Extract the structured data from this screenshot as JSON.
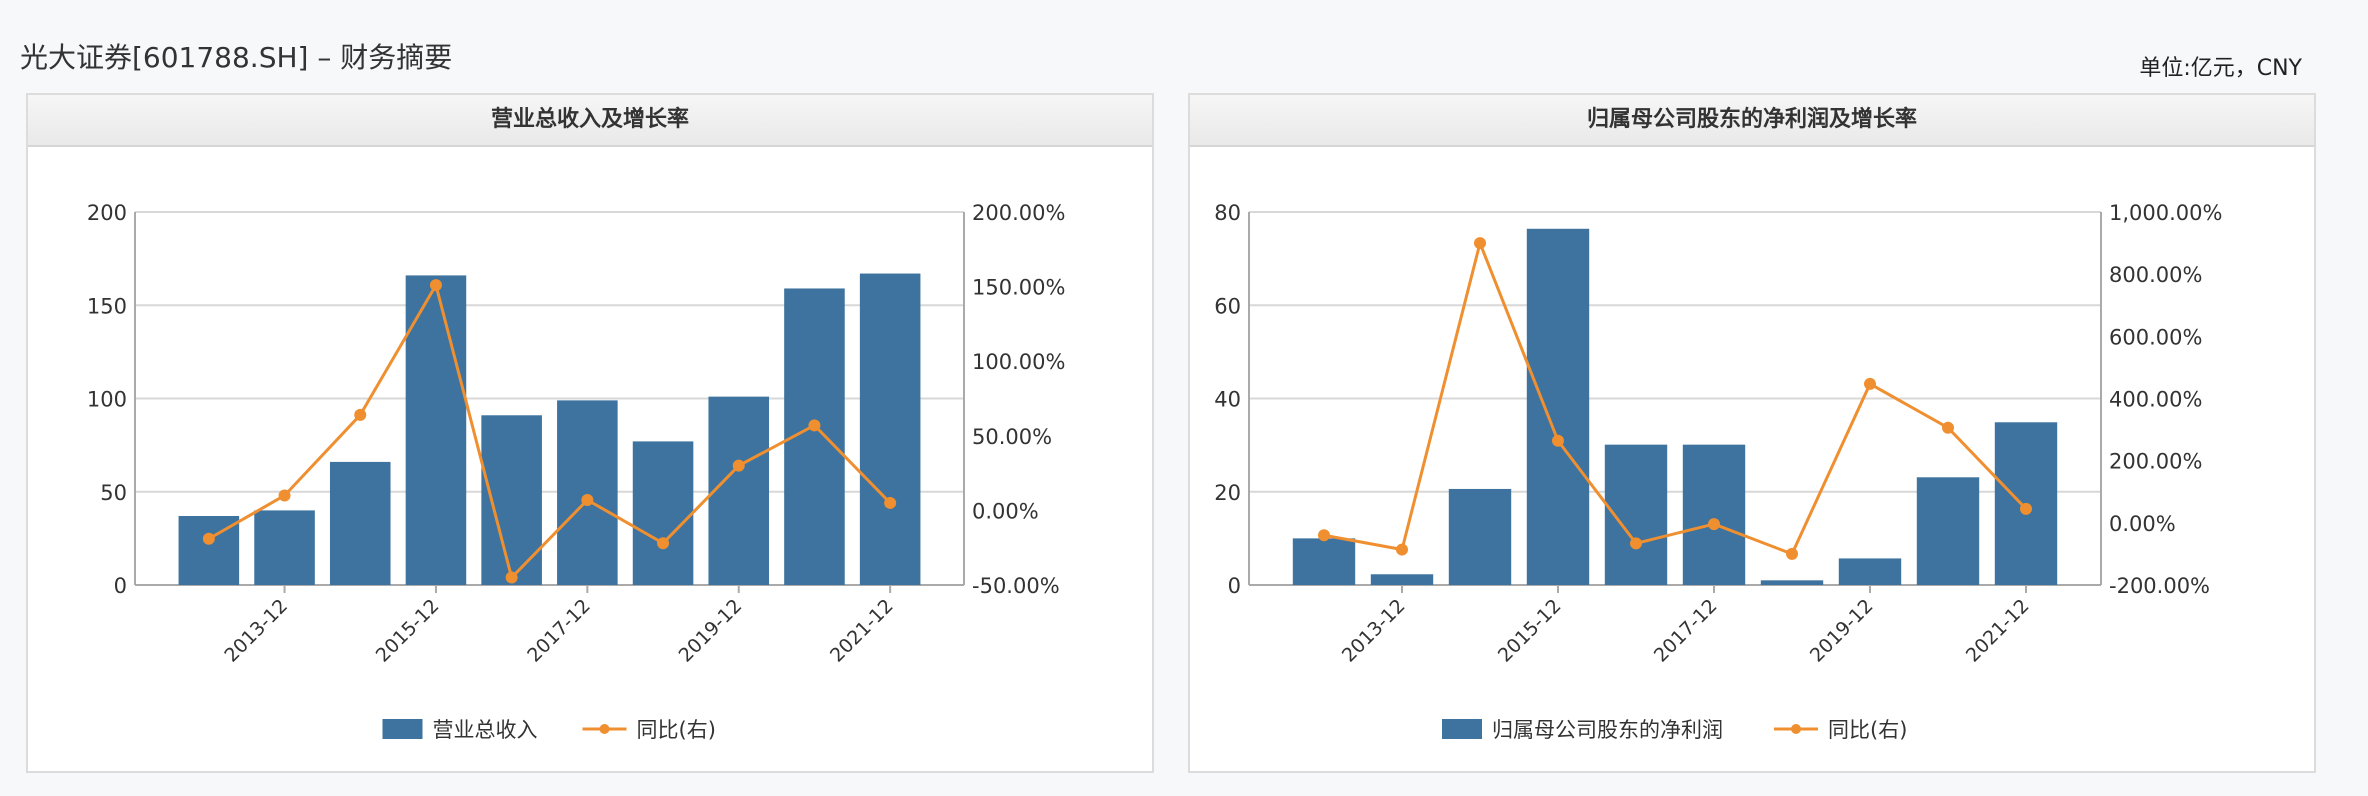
{
  "page": {
    "title": "光大证券[601788.SH] – 财务摘要",
    "unit": "单位:亿元，CNY"
  },
  "colors": {
    "bar": "#3d739e",
    "line": "#ef8f30",
    "grid": "#d8d8d8",
    "axis": "#aaaaaa"
  },
  "chart_data": [
    {
      "type": "bar",
      "title": "营业总收入及增长率",
      "categories": [
        "2012-12",
        "2013-12",
        "2014-12",
        "2015-12",
        "2016-12",
        "2017-12",
        "2018-12",
        "2019-12",
        "2020-12",
        "2021-12"
      ],
      "shown_x_labels": [
        "2013-12",
        "2015-12",
        "2017-12",
        "2019-12",
        "2021-12"
      ],
      "series": [
        {
          "name": "营业总收入",
          "type": "bar",
          "axis": "left",
          "values": [
            37,
            40,
            66,
            166,
            91,
            99,
            77,
            101,
            159,
            167
          ]
        },
        {
          "name": "同比(右)",
          "type": "line",
          "axis": "right",
          "values": [
            -19,
            10,
            64,
            151,
            -45,
            7,
            -22,
            30,
            57,
            5
          ]
        }
      ],
      "ylim_left": [
        0,
        200
      ],
      "yticks_left": [
        "0",
        "50",
        "100",
        "150",
        "200"
      ],
      "ylim_right": [
        -50,
        200
      ],
      "yticks_right": [
        "-50.00%",
        "0.00%",
        "50.00%",
        "100.00%",
        "150.00%",
        "200.00%"
      ],
      "legend": "bottom"
    },
    {
      "type": "bar",
      "title": "归属母公司股东的净利润及增长率",
      "categories": [
        "2012-12",
        "2013-12",
        "2014-12",
        "2015-12",
        "2016-12",
        "2017-12",
        "2018-12",
        "2019-12",
        "2020-12",
        "2021-12"
      ],
      "shown_x_labels": [
        "2013-12",
        "2015-12",
        "2017-12",
        "2019-12",
        "2021-12"
      ],
      "series": [
        {
          "name": "归属母公司股东的净利润",
          "type": "bar",
          "axis": "left",
          "values": [
            10,
            2.3,
            20.6,
            76.4,
            30.1,
            30.1,
            1,
            5.7,
            23.1,
            34.9
          ]
        },
        {
          "name": "同比(右)",
          "type": "line",
          "axis": "right",
          "values": [
            -40,
            -86,
            900,
            264,
            -66,
            -4,
            -100,
            447,
            306,
            45
          ]
        }
      ],
      "ylim_left": [
        0,
        80
      ],
      "yticks_left": [
        "0",
        "20",
        "40",
        "60",
        "80"
      ],
      "ylim_right": [
        -200,
        1000
      ],
      "yticks_right": [
        "-200.00%",
        "0.00%",
        "200.00%",
        "400.00%",
        "600.00%",
        "800.00%",
        "1,000.00%"
      ],
      "legend": "bottom"
    }
  ]
}
